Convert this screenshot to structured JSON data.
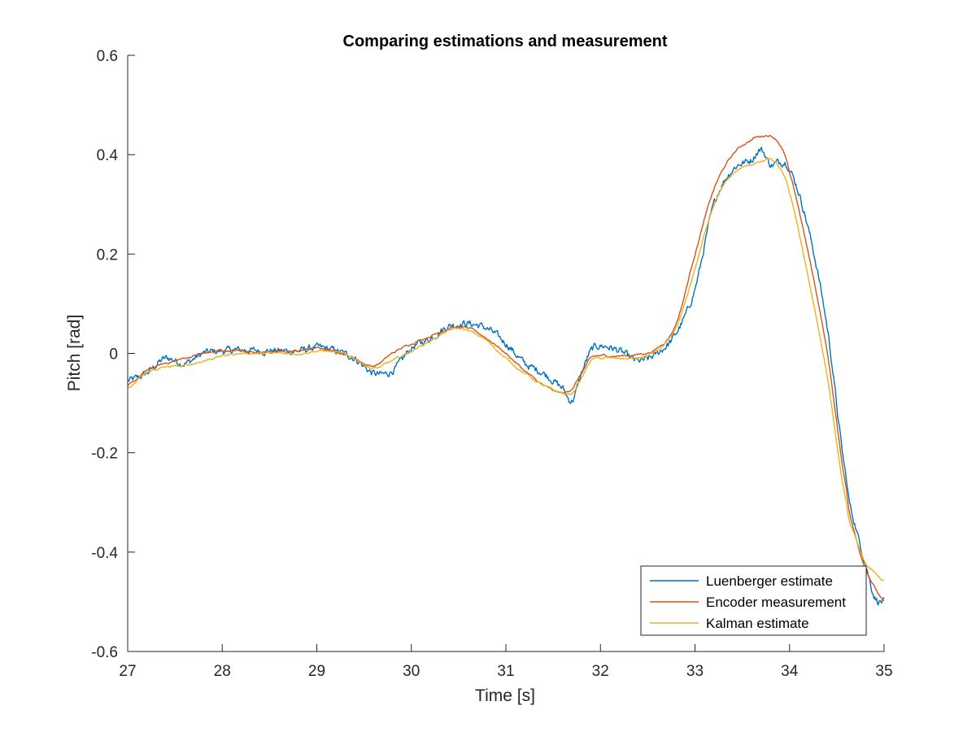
{
  "chart_data": {
    "type": "line",
    "title": "Comparing estimations and measurement",
    "xlabel": "Time [s]",
    "ylabel": "Pitch [rad]",
    "xlim": [
      27,
      35
    ],
    "ylim": [
      -0.6,
      0.6
    ],
    "xticks": [
      27,
      28,
      29,
      30,
      31,
      32,
      33,
      34,
      35
    ],
    "xtick_labels": [
      "27",
      "28",
      "29",
      "30",
      "31",
      "32",
      "33",
      "34",
      "35"
    ],
    "yticks": [
      -0.6,
      -0.4,
      -0.2,
      0,
      0.2,
      0.4,
      0.6
    ],
    "ytick_labels": [
      "-0.6",
      "-0.4",
      "-0.2",
      "0",
      "0.2",
      "0.4",
      "0.6"
    ],
    "grid": false,
    "legend_position": "bottom-right",
    "series": [
      {
        "name": "Luenberger estimate",
        "color": "#0072BD",
        "noisy": true,
        "x": [
          27.0,
          27.2,
          27.4,
          27.6,
          27.8,
          28.0,
          28.2,
          28.4,
          28.6,
          28.8,
          29.0,
          29.2,
          29.4,
          29.6,
          29.8,
          30.0,
          30.2,
          30.4,
          30.5,
          30.6,
          30.8,
          31.0,
          31.2,
          31.4,
          31.6,
          31.7,
          31.8,
          31.9,
          32.0,
          32.2,
          32.4,
          32.6,
          32.8,
          33.0,
          33.2,
          33.4,
          33.6,
          33.7,
          33.8,
          33.9,
          34.0,
          34.2,
          34.4,
          34.6,
          34.7,
          34.8,
          34.9,
          35.0
        ],
        "y": [
          -0.055,
          -0.04,
          -0.01,
          -0.02,
          0.0,
          0.005,
          0.007,
          0.005,
          0.005,
          0.005,
          0.012,
          0.005,
          -0.01,
          -0.04,
          -0.035,
          0.01,
          0.03,
          0.055,
          0.058,
          0.06,
          0.05,
          0.02,
          -0.02,
          -0.04,
          -0.07,
          -0.095,
          -0.04,
          0.005,
          0.015,
          0.005,
          -0.015,
          0.0,
          0.04,
          0.13,
          0.3,
          0.37,
          0.39,
          0.41,
          0.38,
          0.385,
          0.37,
          0.25,
          0.05,
          -0.25,
          -0.35,
          -0.42,
          -0.49,
          -0.5
        ]
      },
      {
        "name": "Encoder measurement",
        "color": "#D95319",
        "noisy": false,
        "x": [
          27.0,
          27.2,
          27.4,
          27.6,
          27.8,
          28.0,
          28.2,
          28.4,
          28.6,
          28.8,
          29.0,
          29.2,
          29.4,
          29.6,
          29.8,
          30.0,
          30.2,
          30.4,
          30.5,
          30.6,
          30.8,
          31.0,
          31.2,
          31.4,
          31.6,
          31.7,
          31.8,
          31.9,
          32.0,
          32.2,
          32.4,
          32.6,
          32.8,
          33.0,
          33.2,
          33.4,
          33.6,
          33.7,
          33.8,
          33.9,
          34.0,
          34.2,
          34.4,
          34.6,
          34.7,
          34.8,
          34.9,
          35.0
        ],
        "y": [
          -0.065,
          -0.035,
          -0.02,
          -0.01,
          0.0,
          0.005,
          0.005,
          0.003,
          0.003,
          0.005,
          0.01,
          0.005,
          -0.01,
          -0.025,
          0.0,
          0.02,
          0.035,
          0.05,
          0.052,
          0.05,
          0.03,
          0.0,
          -0.035,
          -0.065,
          -0.08,
          -0.07,
          -0.04,
          -0.01,
          -0.005,
          -0.005,
          -0.002,
          0.01,
          0.06,
          0.2,
          0.33,
          0.4,
          0.43,
          0.437,
          0.438,
          0.42,
          0.36,
          0.2,
          0.0,
          -0.27,
          -0.37,
          -0.43,
          -0.47,
          -0.5
        ]
      },
      {
        "name": "Kalman estimate",
        "color": "#EDB120",
        "noisy": false,
        "x": [
          27.0,
          27.2,
          27.4,
          27.6,
          27.8,
          28.0,
          28.2,
          28.4,
          28.6,
          28.8,
          29.0,
          29.2,
          29.4,
          29.6,
          29.8,
          30.0,
          30.2,
          30.4,
          30.5,
          30.6,
          30.8,
          31.0,
          31.2,
          31.4,
          31.6,
          31.7,
          31.8,
          31.9,
          32.0,
          32.2,
          32.4,
          32.6,
          32.8,
          33.0,
          33.2,
          33.4,
          33.6,
          33.7,
          33.8,
          33.9,
          34.0,
          34.2,
          34.4,
          34.6,
          34.7,
          34.8,
          34.9,
          35.0
        ],
        "y": [
          -0.07,
          -0.04,
          -0.028,
          -0.025,
          -0.015,
          -0.005,
          0.0,
          0.0,
          0.0,
          0.0,
          0.005,
          0.002,
          -0.01,
          -0.03,
          -0.015,
          0.005,
          0.025,
          0.045,
          0.05,
          0.045,
          0.025,
          -0.01,
          -0.04,
          -0.065,
          -0.08,
          -0.08,
          -0.05,
          -0.015,
          -0.01,
          -0.01,
          -0.01,
          0.005,
          0.05,
          0.17,
          0.3,
          0.36,
          0.38,
          0.385,
          0.39,
          0.37,
          0.32,
          0.15,
          -0.05,
          -0.3,
          -0.37,
          -0.42,
          -0.44,
          -0.46
        ]
      }
    ]
  }
}
